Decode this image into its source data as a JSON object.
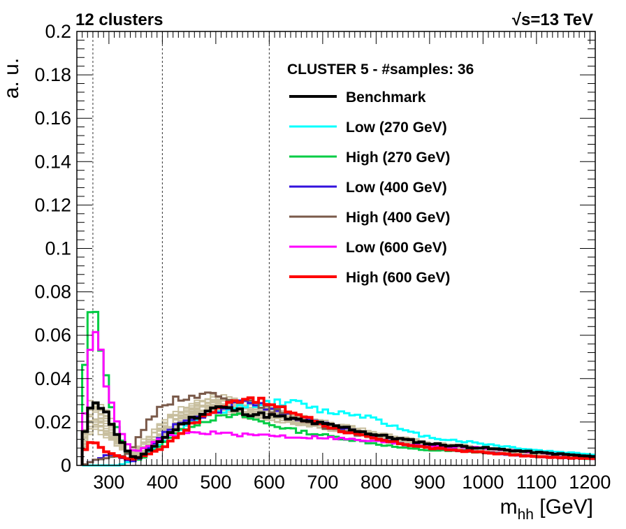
{
  "chart_data": {
    "type": "line",
    "style": "step histogram",
    "header_left": "12 clusters",
    "header_right": "√s=13 TeV",
    "xlabel_main": "m",
    "xlabel_sub": "hh",
    "xlabel_unit": " [GeV]",
    "ylabel": "a. u.",
    "xlim": [
      240,
      1210
    ],
    "ylim": [
      0,
      0.2
    ],
    "x_ticks": [
      "300",
      "400",
      "500",
      "600",
      "700",
      "800",
      "900",
      "1000",
      "1100",
      "1200"
    ],
    "y_ticks": [
      "0",
      "0.02",
      "0.04",
      "0.06",
      "0.08",
      "0.1",
      "0.12",
      "0.14",
      "0.16",
      "0.18",
      "0.2"
    ],
    "reference_lines_x": [
      270,
      400,
      600
    ],
    "legend_title": "CLUSTER 5 - #samples: 36",
    "legend_position": "top-right",
    "background_samples_color": "#c8bf9f",
    "x_knots": [
      250,
      260,
      270,
      280,
      290,
      300,
      320,
      340,
      350,
      360,
      380,
      400,
      420,
      450,
      500,
      550,
      560,
      600,
      650,
      700,
      750,
      800,
      850,
      900,
      1000,
      1100,
      1210
    ],
    "series": [
      {
        "name": "Benchmark",
        "color": "#000000",
        "width": 4,
        "values": [
          0.008,
          0.022,
          0.032,
          0.028,
          0.026,
          0.022,
          0.012,
          0.005,
          0.003,
          0.004,
          0.008,
          0.012,
          0.016,
          0.021,
          0.027,
          0.025,
          0.024,
          0.023,
          0.021,
          0.019,
          0.017,
          0.014,
          0.012,
          0.01,
          0.008,
          0.006,
          0.004
        ]
      },
      {
        "name": "Low (270 GeV)",
        "color": "#00ffff",
        "width": 3,
        "values": [
          0.0,
          0.0,
          0.0,
          0.0,
          0.0,
          0.0,
          0.0,
          0.002,
          0.003,
          0.004,
          0.007,
          0.01,
          0.014,
          0.019,
          0.024,
          0.027,
          0.028,
          0.029,
          0.029,
          0.025,
          0.024,
          0.022,
          0.016,
          0.013,
          0.01,
          0.007,
          0.005
        ]
      },
      {
        "name": "High (270 GeV)",
        "color": "#00cc44",
        "width": 3,
        "values": [
          0.035,
          0.057,
          0.079,
          0.062,
          0.048,
          0.032,
          0.014,
          0.004,
          0.002,
          0.003,
          0.006,
          0.01,
          0.014,
          0.018,
          0.022,
          0.023,
          0.022,
          0.019,
          0.016,
          0.014,
          0.012,
          0.01,
          0.008,
          0.007,
          0.006,
          0.004,
          0.003
        ]
      },
      {
        "name": "Low (400 GeV)",
        "color": "#3311dd",
        "width": 3,
        "values": [
          0.0,
          0.001,
          0.002,
          0.003,
          0.004,
          0.005,
          0.004,
          0.002,
          0.002,
          0.004,
          0.009,
          0.014,
          0.018,
          0.021,
          0.025,
          0.029,
          0.03,
          0.026,
          0.022,
          0.019,
          0.016,
          0.013,
          0.01,
          0.008,
          0.006,
          0.004,
          0.003
        ]
      },
      {
        "name": "High (400 GeV)",
        "color": "#7a5a4a",
        "width": 3,
        "values": [
          0.0,
          0.001,
          0.002,
          0.003,
          0.003,
          0.004,
          0.004,
          0.006,
          0.01,
          0.015,
          0.022,
          0.028,
          0.03,
          0.032,
          0.033,
          0.03,
          0.029,
          0.026,
          0.022,
          0.018,
          0.015,
          0.012,
          0.01,
          0.008,
          0.006,
          0.004,
          0.003
        ]
      },
      {
        "name": "Low (600 GeV)",
        "color": "#ff00ff",
        "width": 3,
        "values": [
          0.01,
          0.04,
          0.069,
          0.058,
          0.044,
          0.032,
          0.016,
          0.008,
          0.006,
          0.007,
          0.01,
          0.012,
          0.014,
          0.015,
          0.015,
          0.014,
          0.014,
          0.014,
          0.013,
          0.013,
          0.012,
          0.011,
          0.01,
          0.009,
          0.008,
          0.006,
          0.004
        ]
      },
      {
        "name": "High (600 GeV)",
        "color": "#ff0000",
        "width": 4,
        "values": [
          0.004,
          0.01,
          0.012,
          0.009,
          0.007,
          0.006,
          0.004,
          0.003,
          0.003,
          0.004,
          0.006,
          0.008,
          0.012,
          0.018,
          0.026,
          0.031,
          0.032,
          0.028,
          0.024,
          0.019,
          0.015,
          0.012,
          0.01,
          0.008,
          0.006,
          0.004,
          0.003
        ]
      }
    ]
  }
}
